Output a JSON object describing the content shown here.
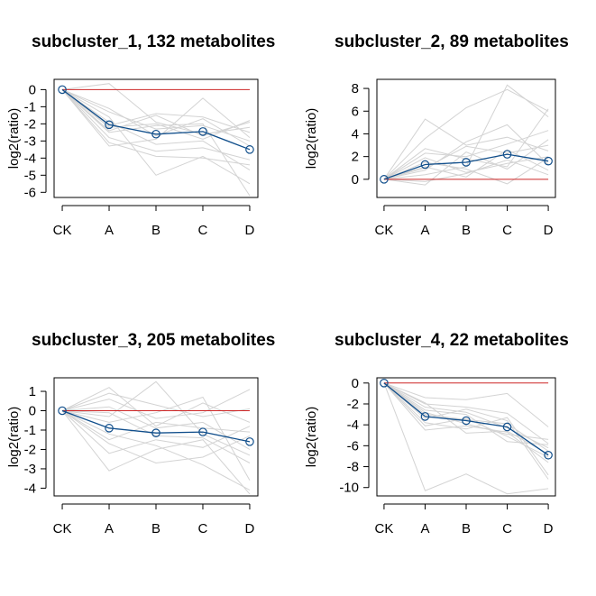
{
  "colors": {
    "background": "#ffffff",
    "member_lines": "#d3d3d3",
    "mean_line": "#104e8b",
    "baseline": "#cd2626",
    "axis": "#000000"
  },
  "chart_data": [
    {
      "type": "line",
      "title": "subcluster_1, 132 metabolites",
      "xlabel": "",
      "ylabel": "log2(ratio)",
      "categories": [
        "CK",
        "A",
        "B",
        "C",
        "D"
      ],
      "ylim": [
        -6.3,
        0.6
      ],
      "yticks": [
        0,
        -1,
        -2,
        -3,
        -4,
        -5,
        -6
      ],
      "ytick_labels": [
        "0",
        "-1",
        "-2",
        "-3",
        "-4",
        "-5",
        "-6"
      ],
      "baseline": 0,
      "mean_values": [
        0,
        -2.05,
        -2.6,
        -2.45,
        -3.5
      ],
      "member_series": [
        [
          0,
          -2.4,
          -1.5,
          -2.7,
          -1.9
        ],
        [
          0,
          -1.3,
          -2.3,
          -2.1,
          -3.0
        ],
        [
          0,
          0.35,
          -1.9,
          -2.6,
          -2.2
        ],
        [
          0,
          -2.8,
          -3.6,
          -3.4,
          -4.1
        ],
        [
          0,
          -3.3,
          -2.9,
          -0.5,
          -2.8
        ],
        [
          0,
          -1.6,
          -5.0,
          -3.9,
          -5.5
        ],
        [
          0,
          -2.1,
          -1.4,
          -1.6,
          -2.5
        ],
        [
          0,
          -1.9,
          -3.2,
          -3.0,
          -4.7
        ],
        [
          0,
          -2.5,
          -2.1,
          -2.0,
          -6.2
        ],
        [
          0,
          -1.1,
          -2.7,
          -1.7,
          -3.3
        ],
        [
          0,
          -2.2,
          -2.0,
          -2.9,
          -1.8
        ],
        [
          0,
          -3.1,
          -3.9,
          -4.0,
          -4.4
        ]
      ],
      "grid": false,
      "legend": "none"
    },
    {
      "type": "line",
      "title": "subcluster_2, 89 metabolites",
      "xlabel": "",
      "ylabel": "log2(ratio)",
      "categories": [
        "CK",
        "A",
        "B",
        "C",
        "D"
      ],
      "ylim": [
        -1.6,
        8.8
      ],
      "yticks": [
        0,
        2,
        4,
        6,
        8
      ],
      "ytick_labels": [
        "0",
        "2",
        "4",
        "6",
        "8"
      ],
      "baseline": 0,
      "mean_values": [
        0,
        1.3,
        1.5,
        2.2,
        1.6
      ],
      "member_series": [
        [
          0,
          5.3,
          3.0,
          3.7,
          2.5
        ],
        [
          0,
          3.6,
          6.3,
          7.9,
          6.0
        ],
        [
          0,
          0.4,
          1.1,
          8.3,
          5.5
        ],
        [
          0,
          1.9,
          0.6,
          1.4,
          2.0
        ],
        [
          0,
          -0.5,
          2.4,
          0.9,
          3.5
        ],
        [
          0,
          1.1,
          0.2,
          2.6,
          0.8
        ],
        [
          0,
          2.7,
          1.8,
          1.1,
          6.2
        ],
        [
          0,
          0.8,
          3.3,
          4.8,
          1.3
        ],
        [
          0,
          1.5,
          0.9,
          -0.4,
          1.9
        ],
        [
          0,
          2.3,
          2.0,
          3.1,
          4.3
        ],
        [
          0,
          -0.2,
          0.5,
          1.7,
          0.4
        ],
        [
          0,
          1.0,
          2.9,
          2.3,
          3.0
        ]
      ],
      "grid": false,
      "legend": "none"
    },
    {
      "type": "line",
      "title": "subcluster_3, 205 metabolites",
      "xlabel": "",
      "ylabel": "log2(ratio)",
      "categories": [
        "CK",
        "A",
        "B",
        "C",
        "D"
      ],
      "ylim": [
        -4.4,
        1.7
      ],
      "yticks": [
        1,
        0,
        -1,
        -2,
        -3,
        -4
      ],
      "ytick_labels": [
        "1",
        "0",
        "-1",
        "-2",
        "-3",
        "-4"
      ],
      "baseline": 0,
      "mean_values": [
        0,
        -0.9,
        -1.15,
        -1.1,
        -1.6
      ],
      "member_series": [
        [
          0,
          1.2,
          -0.8,
          0.4,
          -0.6
        ],
        [
          0,
          -3.1,
          -2.0,
          -1.5,
          -4.3
        ],
        [
          0,
          -0.3,
          1.5,
          -1.2,
          -2.3
        ],
        [
          0,
          0.6,
          -0.4,
          -0.1,
          1.1
        ],
        [
          0,
          -1.7,
          -2.7,
          -2.4,
          -1.3
        ],
        [
          0,
          -0.6,
          -0.1,
          0.7,
          -3.6
        ],
        [
          0,
          -2.2,
          -1.5,
          -1.9,
          -0.8
        ],
        [
          0,
          0.2,
          -0.9,
          -0.6,
          -2.0
        ],
        [
          0,
          -1.2,
          -1.8,
          -2.8,
          -4.1
        ],
        [
          0,
          0.9,
          0.3,
          -0.3,
          0.1
        ],
        [
          0,
          -0.1,
          -1.3,
          -1.4,
          -2.7
        ],
        [
          0,
          -1.5,
          -0.6,
          -0.9,
          -1.1
        ]
      ],
      "grid": false,
      "legend": "none"
    },
    {
      "type": "line",
      "title": "subcluster_4, 22 metabolites",
      "xlabel": "",
      "ylabel": "log2(ratio)",
      "categories": [
        "CK",
        "A",
        "B",
        "C",
        "D"
      ],
      "ylim": [
        -10.8,
        0.5
      ],
      "yticks": [
        0,
        -2,
        -4,
        -6,
        -8,
        -10
      ],
      "ytick_labels": [
        "0",
        "-2",
        "-4",
        "-6",
        "-8",
        "-10"
      ],
      "baseline": 0,
      "mean_values": [
        0,
        -3.2,
        -3.6,
        -4.2,
        -6.9
      ],
      "member_series": [
        [
          0,
          -10.3,
          -8.7,
          -10.6,
          -10.1
        ],
        [
          0,
          -1.4,
          -1.6,
          -1.0,
          -4.2
        ],
        [
          0,
          -2.0,
          -2.3,
          -2.9,
          -5.8
        ],
        [
          0,
          -3.0,
          -3.5,
          -3.9,
          -6.5
        ],
        [
          0,
          -4.5,
          -4.1,
          -4.7,
          -7.6
        ],
        [
          0,
          -2.6,
          -3.0,
          -5.6,
          -5.9
        ],
        [
          0,
          -3.8,
          -4.4,
          -3.3,
          -8.8
        ],
        [
          0,
          -2.3,
          -2.8,
          -4.3,
          -6.2
        ],
        [
          0,
          -4.1,
          -3.4,
          -5.1,
          -7.1
        ],
        [
          0,
          -1.9,
          -4.8,
          -4.6,
          -6.8
        ],
        [
          0,
          -3.4,
          -2.5,
          -3.6,
          -9.2
        ],
        [
          0,
          -2.8,
          -3.9,
          -4.9,
          -5.4
        ]
      ],
      "grid": false,
      "legend": "none"
    }
  ]
}
